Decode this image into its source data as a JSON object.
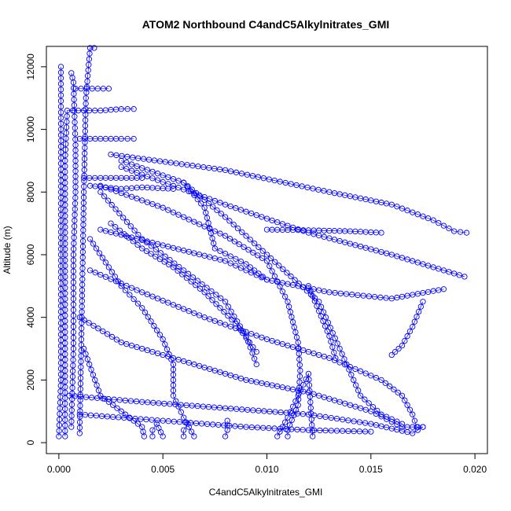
{
  "chart_data": {
    "type": "scatter",
    "title": "ATOM2 Northbound C4andC5Alkylnitrates_GMI",
    "xlabel": "C4andC5Alkylnitrates_GMI",
    "ylabel": "Altitude (m)",
    "xlim": [
      -0.0006,
      0.0206
    ],
    "ylim": [
      -350,
      12650
    ],
    "x_ticks": [
      "0.000",
      "0.005",
      "0.010",
      "0.015",
      "0.020"
    ],
    "y_ticks": [
      "0",
      "2000",
      "4000",
      "6000",
      "8000",
      "10000",
      "12000"
    ],
    "x_tick_values": [
      0,
      0.005,
      0.01,
      0.015,
      0.02
    ],
    "y_tick_values": [
      0,
      2000,
      4000,
      6000,
      8000,
      10000,
      12000
    ],
    "grid": false,
    "marker": "open circle",
    "color": "#0000ff",
    "series": [
      {
        "points": [
          [
            0.0,
            200
          ],
          [
            0.0001,
            2000
          ],
          [
            0.0001,
            4000
          ],
          [
            0.0001,
            6000
          ],
          [
            0.0001,
            8000
          ],
          [
            0.0001,
            10000
          ],
          [
            0.0001,
            12000
          ]
        ]
      },
      {
        "points": [
          [
            0.0003,
            200
          ],
          [
            0.0003,
            3000
          ],
          [
            0.0003,
            6000
          ],
          [
            0.0003,
            9000
          ],
          [
            0.0004,
            10600
          ],
          [
            0.002,
            10600
          ],
          [
            0.003,
            10650
          ],
          [
            0.0036,
            10650
          ]
        ]
      },
      {
        "points": [
          [
            0.0006,
            500
          ],
          [
            0.0007,
            3000
          ],
          [
            0.0007,
            6000
          ],
          [
            0.0008,
            8000
          ],
          [
            0.0008,
            9500
          ],
          [
            0.0007,
            11500
          ],
          [
            0.0006,
            11800
          ]
        ]
      },
      {
        "points": [
          [
            0.001,
            300
          ],
          [
            0.0011,
            4000
          ],
          [
            0.0012,
            8000
          ],
          [
            0.0013,
            11000
          ],
          [
            0.0015,
            12600
          ],
          [
            0.0017,
            12600
          ]
        ]
      },
      {
        "points": [
          [
            0.0008,
            11300
          ],
          [
            0.0016,
            11300
          ],
          [
            0.0024,
            11300
          ]
        ]
      },
      {
        "points": [
          [
            0.001,
            9700
          ],
          [
            0.002,
            9700
          ],
          [
            0.003,
            9700
          ],
          [
            0.0036,
            9700
          ]
        ]
      },
      {
        "points": [
          [
            0.0012,
            8450
          ],
          [
            0.002,
            8450
          ],
          [
            0.003,
            8450
          ],
          [
            0.004,
            8450
          ]
        ]
      },
      {
        "points": [
          [
            0.0015,
            8200
          ],
          [
            0.003,
            8100
          ],
          [
            0.004,
            8150
          ],
          [
            0.0055,
            8100
          ]
        ]
      },
      {
        "points": [
          [
            0.002,
            8200
          ],
          [
            0.005,
            7500
          ],
          [
            0.008,
            6600
          ],
          [
            0.01,
            5800
          ],
          [
            0.011,
            4500
          ],
          [
            0.0115,
            3200
          ],
          [
            0.0116,
            2300
          ],
          [
            0.0115,
            1200
          ],
          [
            0.011,
            400
          ],
          [
            0.011,
            200
          ]
        ]
      },
      {
        "points": [
          [
            0.002,
            8000
          ],
          [
            0.004,
            6500
          ],
          [
            0.006,
            5500
          ],
          [
            0.008,
            4500
          ],
          [
            0.009,
            3400
          ],
          [
            0.0095,
            2500
          ]
        ]
      },
      {
        "points": [
          [
            0.0015,
            6500
          ],
          [
            0.003,
            5000
          ],
          [
            0.004,
            4300
          ],
          [
            0.005,
            3300
          ],
          [
            0.0055,
            2500
          ],
          [
            0.0055,
            1500
          ],
          [
            0.006,
            800
          ],
          [
            0.0065,
            200
          ]
        ]
      },
      {
        "points": [
          [
            0.0012,
            3000
          ],
          [
            0.002,
            1500
          ],
          [
            0.003,
            1000
          ],
          [
            0.004,
            500
          ],
          [
            0.0041,
            200
          ]
        ]
      },
      {
        "points": [
          [
            0.003,
            9000
          ],
          [
            0.006,
            8300
          ],
          [
            0.008,
            7200
          ],
          [
            0.01,
            6000
          ],
          [
            0.0125,
            4500
          ],
          [
            0.0135,
            3000
          ],
          [
            0.0145,
            1500
          ],
          [
            0.0155,
            900
          ],
          [
            0.0165,
            600
          ]
        ]
      },
      {
        "points": [
          [
            0.01,
            6800
          ],
          [
            0.012,
            6780
          ],
          [
            0.014,
            6750
          ],
          [
            0.0155,
            6700
          ]
        ]
      },
      {
        "points": [
          [
            0.0025,
            9200
          ],
          [
            0.008,
            8700
          ],
          [
            0.013,
            8000
          ],
          [
            0.016,
            7600
          ],
          [
            0.018,
            7100
          ],
          [
            0.019,
            6750
          ],
          [
            0.0196,
            6700
          ]
        ]
      },
      {
        "points": [
          [
            0.003,
            8800
          ],
          [
            0.008,
            7600
          ],
          [
            0.012,
            6700
          ],
          [
            0.016,
            6000
          ],
          [
            0.0195,
            5300
          ]
        ]
      },
      {
        "points": [
          [
            0.002,
            6800
          ],
          [
            0.005,
            6300
          ],
          [
            0.008,
            5800
          ],
          [
            0.01,
            5200
          ],
          [
            0.013,
            4800
          ],
          [
            0.016,
            4600
          ],
          [
            0.0185,
            4900
          ]
        ]
      },
      {
        "points": [
          [
            0.0175,
            4500
          ],
          [
            0.017,
            3700
          ],
          [
            0.0165,
            3100
          ],
          [
            0.016,
            2800
          ]
        ]
      },
      {
        "points": [
          [
            0.0015,
            5500
          ],
          [
            0.004,
            4800
          ],
          [
            0.007,
            4000
          ],
          [
            0.01,
            3300
          ],
          [
            0.013,
            2700
          ],
          [
            0.0155,
            2000
          ],
          [
            0.0165,
            1500
          ],
          [
            0.017,
            900
          ],
          [
            0.0172,
            500
          ]
        ]
      },
      {
        "points": [
          [
            0.001,
            4000
          ],
          [
            0.003,
            3200
          ],
          [
            0.006,
            2600
          ],
          [
            0.009,
            2000
          ],
          [
            0.012,
            1600
          ],
          [
            0.015,
            1000
          ],
          [
            0.0165,
            500
          ],
          [
            0.0175,
            500
          ]
        ]
      },
      {
        "points": [
          [
            0.0005,
            1500
          ],
          [
            0.004,
            1300
          ],
          [
            0.008,
            1100
          ],
          [
            0.012,
            900
          ],
          [
            0.015,
            600
          ],
          [
            0.017,
            300
          ],
          [
            0.0175,
            500
          ]
        ]
      },
      {
        "points": [
          [
            0.001,
            900
          ],
          [
            0.005,
            700
          ],
          [
            0.009,
            500
          ],
          [
            0.012,
            400
          ],
          [
            0.015,
            350
          ]
        ]
      },
      {
        "points": [
          [
            0.008,
            200
          ],
          [
            0.0081,
            400
          ],
          [
            0.0081,
            700
          ]
        ]
      },
      {
        "points": [
          [
            0.006,
            200
          ],
          [
            0.006,
            400
          ],
          [
            0.0062,
            600
          ]
        ]
      },
      {
        "points": [
          [
            0.0045,
            200
          ],
          [
            0.0045,
            400
          ],
          [
            0.0047,
            600
          ],
          [
            0.005,
            200
          ]
        ]
      },
      {
        "points": [
          [
            0.0105,
            200
          ],
          [
            0.011,
            800
          ],
          [
            0.0115,
            1500
          ],
          [
            0.012,
            2200
          ],
          [
            0.0122,
            200
          ]
        ]
      },
      {
        "points": [
          [
            0.012,
            5000
          ],
          [
            0.0125,
            4200
          ],
          [
            0.013,
            3400
          ],
          [
            0.0133,
            2700
          ]
        ]
      },
      {
        "points": [
          [
            0.006,
            8300
          ],
          [
            0.007,
            7500
          ],
          [
            0.0075,
            6200
          ],
          [
            0.009,
            5700
          ],
          [
            0.01,
            5200
          ]
        ]
      },
      {
        "points": [
          [
            0.0025,
            7000
          ],
          [
            0.004,
            6200
          ],
          [
            0.0055,
            5600
          ],
          [
            0.007,
            4800
          ],
          [
            0.0085,
            3800
          ],
          [
            0.0095,
            2900
          ]
        ]
      }
    ]
  }
}
